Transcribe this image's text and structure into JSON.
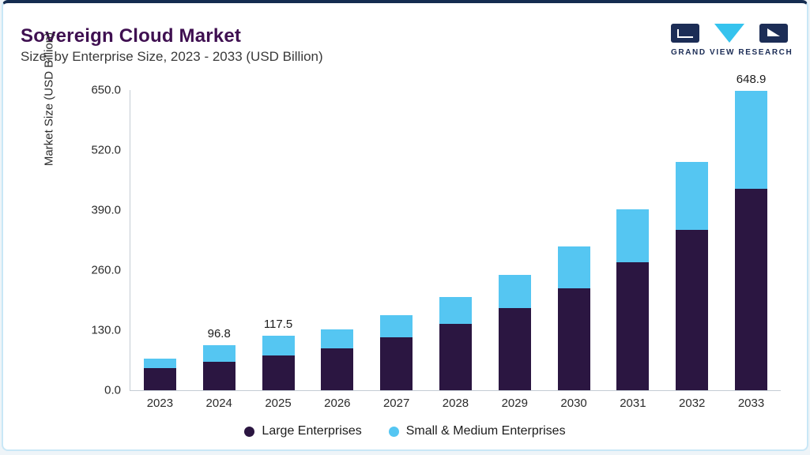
{
  "header": {
    "title": "Sovereign Cloud Market",
    "subtitle": "Size, by Enterprise Size, 2023 - 2033 (USD Billion)",
    "logo_text": "GRAND VIEW RESEARCH"
  },
  "colors": {
    "title": "#3f1051",
    "large_enterprises": "#2b1641",
    "sme": "#55c6f2",
    "logo_navy": "#1c2d56",
    "logo_cyan": "#35c3ee",
    "card_border": "#c9e7f6",
    "card_top_line": "#152c50"
  },
  "chart_data": {
    "type": "bar",
    "stacked": true,
    "title": "Sovereign Cloud Market Size, by Enterprise Size, 2023 - 2033 (USD Billion)",
    "xlabel": "",
    "ylabel": "Market Size (USD Billion)",
    "ylim": [
      0,
      650
    ],
    "ytick_labels_bottom_to_top": [
      "0.0",
      "130.0",
      "260.0",
      "390.0",
      "520.0",
      "650.0"
    ],
    "grid": false,
    "legend_position": "bottom",
    "categories": [
      "2023",
      "2024",
      "2025",
      "2026",
      "2027",
      "2028",
      "2029",
      "2030",
      "2031",
      "2032",
      "2033"
    ],
    "series": [
      {
        "name": "Large Enterprises",
        "color": "#2b1641",
        "values": [
          48,
          62,
          76,
          90,
          114,
          143,
          178,
          220,
          277,
          347,
          436
        ]
      },
      {
        "name": "Small & Medium Enterprises",
        "color": "#55c6f2",
        "values": [
          21,
          34.8,
          41.5,
          41,
          48,
          59,
          71,
          92,
          114,
          148,
          212.9
        ]
      }
    ],
    "totals": [
      69,
      96.8,
      117.5,
      131,
      162,
      202,
      249,
      312,
      391,
      495,
      648.9
    ],
    "bar_value_labels": [
      "",
      "96.8",
      "117.5",
      "",
      "",
      "",
      "",
      "",
      "",
      "",
      "648.9"
    ]
  }
}
